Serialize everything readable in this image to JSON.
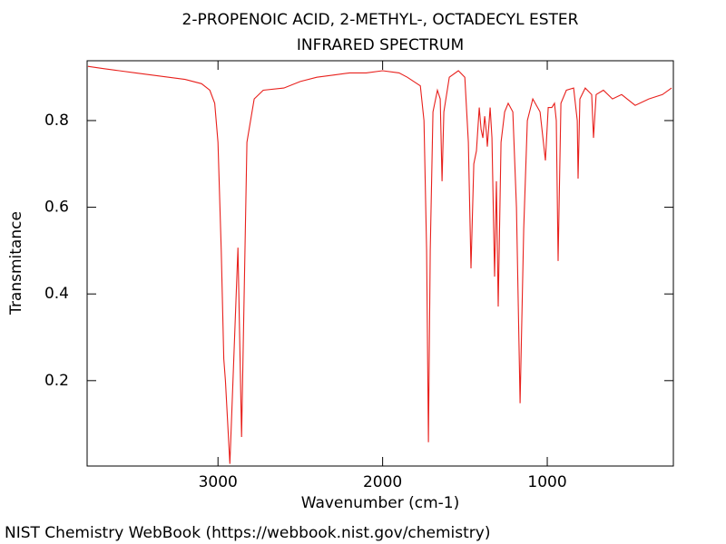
{
  "chart_data": {
    "type": "line",
    "title": "2-PROPENOIC ACID, 2-METHYL-, OCTADECYL ESTER",
    "subtitle": "INFRARED SPECTRUM",
    "x_label": "Wavenumber (cm-1)",
    "y_label": "Transmitance",
    "source": "NIST Chemistry WebBook (https://webbook.nist.gov/chemistry)",
    "color": "#e8201c",
    "xlim": [
      3795,
      234
    ],
    "ylim": [
      0.003,
      0.938
    ],
    "xticks": [
      3000,
      2000,
      1000
    ],
    "yticks": [
      0.2,
      0.4,
      0.6,
      0.8
    ],
    "x": [
      3790,
      3700,
      3600,
      3500,
      3400,
      3300,
      3200,
      3100,
      3050,
      3020,
      3000,
      2980,
      2965,
      2955,
      2928,
      2879,
      2857,
      2824,
      2780,
      2725,
      2600,
      2500,
      2400,
      2300,
      2200,
      2100,
      2000,
      1900,
      1850,
      1771,
      1749,
      1733,
      1722,
      1711,
      1694,
      1667,
      1650,
      1639,
      1628,
      1595,
      1540,
      1501,
      1479,
      1463,
      1446,
      1430,
      1413,
      1402,
      1391,
      1380,
      1369,
      1364,
      1347,
      1336,
      1320,
      1309,
      1298,
      1281,
      1259,
      1237,
      1209,
      1187,
      1165,
      1143,
      1121,
      1088,
      1044,
      1011,
      994,
      972,
      956,
      945,
      934,
      917,
      884,
      840,
      818,
      813,
      802,
      769,
      730,
      719,
      703,
      659,
      604,
      548,
      466,
      383,
      300,
      245
    ],
    "values": [
      0.925,
      0.92,
      0.915,
      0.91,
      0.905,
      0.9,
      0.895,
      0.885,
      0.87,
      0.84,
      0.75,
      0.5,
      0.25,
      0.2,
      0.008,
      0.507,
      0.07,
      0.75,
      0.85,
      0.87,
      0.875,
      0.89,
      0.9,
      0.905,
      0.91,
      0.91,
      0.915,
      0.91,
      0.9,
      0.88,
      0.8,
      0.5,
      0.058,
      0.5,
      0.82,
      0.87,
      0.85,
      0.66,
      0.82,
      0.9,
      0.915,
      0.9,
      0.75,
      0.459,
      0.7,
      0.73,
      0.83,
      0.78,
      0.76,
      0.81,
      0.77,
      0.74,
      0.83,
      0.76,
      0.44,
      0.66,
      0.371,
      0.75,
      0.82,
      0.84,
      0.82,
      0.6,
      0.148,
      0.55,
      0.8,
      0.85,
      0.82,
      0.708,
      0.83,
      0.83,
      0.84,
      0.8,
      0.476,
      0.84,
      0.87,
      0.875,
      0.8,
      0.666,
      0.85,
      0.875,
      0.86,
      0.76,
      0.86,
      0.87,
      0.85,
      0.86,
      0.835,
      0.85,
      0.86,
      0.875
    ]
  }
}
